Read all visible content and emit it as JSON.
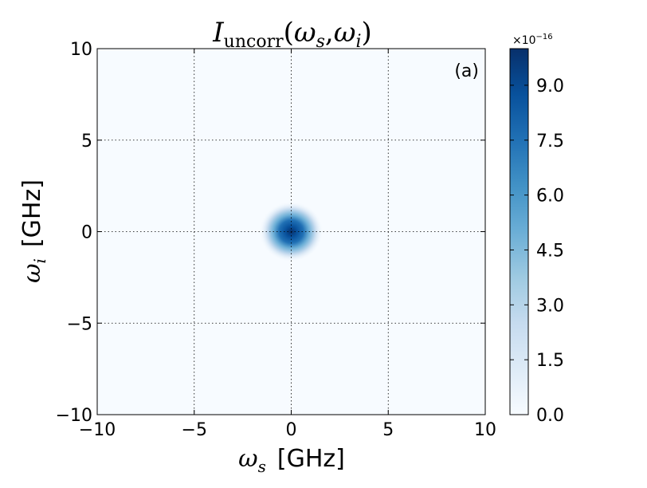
{
  "chart_data": {
    "type": "heatmap",
    "title": {
      "symbol": "I",
      "subscript": "uncorr",
      "args_open": "(",
      "arg1": "ω",
      "arg1_sub": "s",
      "comma": ",",
      "arg2": "ω",
      "arg2_sub": "i",
      "args_close": ")"
    },
    "xlabel": {
      "symbol": "ω",
      "sub": "s",
      "unit": "[GHz]"
    },
    "ylabel": {
      "symbol": "ω",
      "sub": "i",
      "unit": "[GHz]"
    },
    "xlim": [
      -10,
      10
    ],
    "ylim": [
      -10,
      10
    ],
    "x_ticks": [
      -10,
      -5,
      0,
      5,
      10
    ],
    "y_ticks": [
      -10,
      -5,
      0,
      5,
      10
    ],
    "x_tick_labels": [
      "−10",
      "−5",
      "0",
      "5",
      "10"
    ],
    "y_tick_labels": [
      "−10",
      "−5",
      "0",
      "5",
      "10"
    ],
    "grid": true,
    "panel_label": "(a)",
    "peak": {
      "x": 0,
      "y": 0,
      "value": 1e-15,
      "spread_x": 0.55,
      "spread_y": 0.55
    },
    "colorbar": {
      "range": [
        0,
        1e-15
      ],
      "ticks": [
        0.0,
        1.5,
        3.0,
        4.5,
        6.0,
        7.5,
        9.0
      ],
      "tick_labels": [
        "0.0",
        "1.5",
        "3.0",
        "4.5",
        "6.0",
        "7.5",
        "9.0"
      ],
      "tick_max": 10,
      "multiplier_base": "×10",
      "multiplier_exp": "−16",
      "colormap": "Blues",
      "color_low": "#f7fbff",
      "color_high": "#08306b"
    }
  }
}
